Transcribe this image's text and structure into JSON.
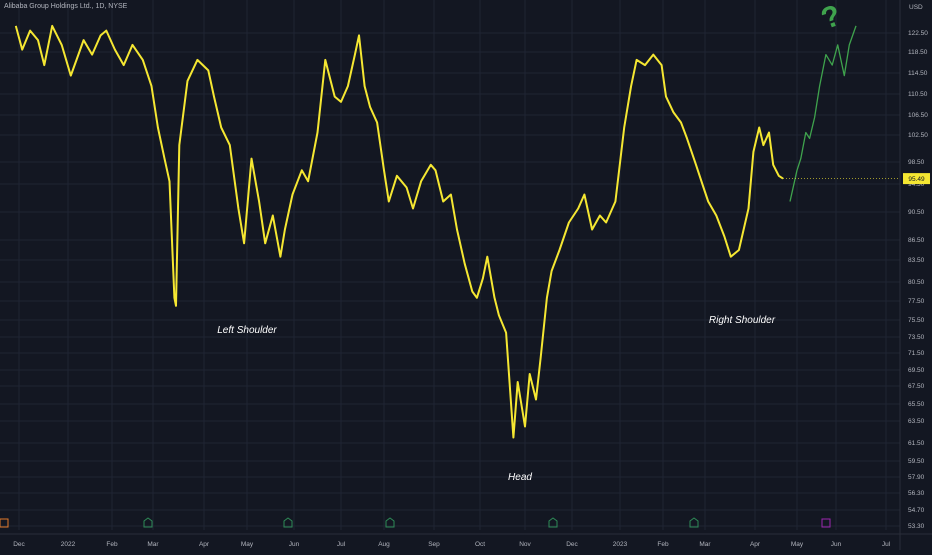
{
  "header": {
    "title": "Alibaba Group Holdings Ltd., 1D, NYSE"
  },
  "chart_data": {
    "type": "line",
    "currency": "USD",
    "last_price": "95.49",
    "y_ticks": [
      "122.50",
      "118.50",
      "114.50",
      "110.50",
      "106.50",
      "102.50",
      "98.50",
      "94.50",
      "90.50",
      "86.50",
      "83.50",
      "80.50",
      "77.50",
      "75.50",
      "73.50",
      "71.50",
      "69.50",
      "67.50",
      "65.50",
      "63.50",
      "61.50",
      "59.50",
      "57.90",
      "56.30",
      "54.70",
      "53.30"
    ],
    "x_ticks": [
      "Dec",
      "2022",
      "Feb",
      "Mar",
      "Apr",
      "May",
      "Jun",
      "Jul",
      "Aug",
      "Sep",
      "Oct",
      "Nov",
      "Dec",
      "2023",
      "Feb",
      "Mar",
      "Apr",
      "May",
      "Jun",
      "Jul"
    ],
    "annotations": {
      "left_shoulder": "Left Shoulder",
      "head": "Head",
      "right_shoulder": "Right Shoulder",
      "question": "?"
    },
    "series": [
      {
        "color": "#f5e732",
        "points": [
          [
            "2021-11-29",
            124
          ],
          [
            "2021-12-03",
            119
          ],
          [
            "2021-12-08",
            123
          ],
          [
            "2021-12-13",
            121
          ],
          [
            "2021-12-17",
            116
          ],
          [
            "2021-12-22",
            124
          ],
          [
            "2021-12-28",
            120
          ],
          [
            "2022-01-03",
            114
          ],
          [
            "2022-01-07",
            117
          ],
          [
            "2022-01-12",
            121
          ],
          [
            "2022-01-18",
            118
          ],
          [
            "2022-01-24",
            122
          ],
          [
            "2022-01-28",
            123
          ],
          [
            "2022-02-03",
            119
          ],
          [
            "2022-02-09",
            116
          ],
          [
            "2022-02-15",
            120
          ],
          [
            "2022-02-22",
            117
          ],
          [
            "2022-02-28",
            112
          ],
          [
            "2022-03-04",
            104
          ],
          [
            "2022-03-08",
            99
          ],
          [
            "2022-03-11",
            95
          ],
          [
            "2022-03-14",
            78
          ],
          [
            "2022-03-15",
            77
          ],
          [
            "2022-03-17",
            101
          ],
          [
            "2022-03-22",
            113
          ],
          [
            "2022-03-28",
            117
          ],
          [
            "2022-04-04",
            115
          ],
          [
            "2022-04-08",
            110
          ],
          [
            "2022-04-13",
            104
          ],
          [
            "2022-04-19",
            101
          ],
          [
            "2022-04-25",
            91
          ],
          [
            "2022-04-29",
            86
          ],
          [
            "2022-05-04",
            99
          ],
          [
            "2022-05-09",
            92
          ],
          [
            "2022-05-13",
            86
          ],
          [
            "2022-05-18",
            90
          ],
          [
            "2022-05-23",
            84
          ],
          [
            "2022-05-26",
            88
          ],
          [
            "2022-05-31",
            93
          ],
          [
            "2022-06-06",
            97
          ],
          [
            "2022-06-10",
            95
          ],
          [
            "2022-06-16",
            103
          ],
          [
            "2022-06-21",
            117
          ],
          [
            "2022-06-27",
            110
          ],
          [
            "2022-07-01",
            109
          ],
          [
            "2022-07-06",
            112
          ],
          [
            "2022-07-11",
            118
          ],
          [
            "2022-07-14",
            122
          ],
          [
            "2022-07-18",
            112
          ],
          [
            "2022-07-22",
            108
          ],
          [
            "2022-07-27",
            105
          ],
          [
            "2022-08-01",
            97
          ],
          [
            "2022-08-04",
            92
          ],
          [
            "2022-08-09",
            96
          ],
          [
            "2022-08-15",
            94
          ],
          [
            "2022-08-19",
            91
          ],
          [
            "2022-08-24",
            95
          ],
          [
            "2022-08-30",
            98
          ],
          [
            "2022-09-02",
            97
          ],
          [
            "2022-09-07",
            92
          ],
          [
            "2022-09-12",
            93
          ],
          [
            "2022-09-16",
            88
          ],
          [
            "2022-09-21",
            83
          ],
          [
            "2022-09-26",
            79
          ],
          [
            "2022-09-29",
            78
          ],
          [
            "2022-10-03",
            81
          ],
          [
            "2022-10-06",
            84
          ],
          [
            "2022-10-11",
            78
          ],
          [
            "2022-10-14",
            76
          ],
          [
            "2022-10-19",
            74
          ],
          [
            "2022-10-24",
            62
          ],
          [
            "2022-10-27",
            68
          ],
          [
            "2022-11-01",
            63
          ],
          [
            "2022-11-04",
            69
          ],
          [
            "2022-11-08",
            66
          ],
          [
            "2022-11-11",
            71
          ],
          [
            "2022-11-15",
            78
          ],
          [
            "2022-11-18",
            82
          ],
          [
            "2022-11-23",
            85
          ],
          [
            "2022-11-29",
            89
          ],
          [
            "2022-12-05",
            91
          ],
          [
            "2022-12-09",
            93
          ],
          [
            "2022-12-14",
            88
          ],
          [
            "2022-12-19",
            90
          ],
          [
            "2022-12-23",
            89
          ],
          [
            "2022-12-29",
            92
          ],
          [
            "2023-01-04",
            104
          ],
          [
            "2023-01-09",
            112
          ],
          [
            "2023-01-13",
            117
          ],
          [
            "2023-01-19",
            116
          ],
          [
            "2023-01-25",
            118
          ],
          [
            "2023-01-31",
            116
          ],
          [
            "2023-02-03",
            110
          ],
          [
            "2023-02-08",
            107
          ],
          [
            "2023-02-13",
            105
          ],
          [
            "2023-02-17",
            102
          ],
          [
            "2023-02-23",
            98
          ],
          [
            "2023-02-28",
            94
          ],
          [
            "2023-03-03",
            92
          ],
          [
            "2023-03-08",
            90
          ],
          [
            "2023-03-13",
            87
          ],
          [
            "2023-03-17",
            84
          ],
          [
            "2023-03-22",
            85
          ],
          [
            "2023-03-28",
            91
          ],
          [
            "2023-03-31",
            100
          ],
          [
            "2023-04-04",
            104
          ],
          [
            "2023-04-07",
            101
          ],
          [
            "2023-04-11",
            103
          ],
          [
            "2023-04-14",
            98
          ],
          [
            "2023-04-18",
            96
          ],
          [
            "2023-04-21",
            95.49
          ]
        ]
      },
      {
        "color": "#3fa34d",
        "points": [
          [
            "2023-04-26",
            92
          ],
          [
            "2023-05-01",
            97
          ],
          [
            "2023-05-04",
            99
          ],
          [
            "2023-05-08",
            103
          ],
          [
            "2023-05-11",
            102
          ],
          [
            "2023-05-15",
            106
          ],
          [
            "2023-05-19",
            112
          ],
          [
            "2023-05-24",
            118
          ],
          [
            "2023-05-29",
            116
          ],
          [
            "2023-06-02",
            120
          ],
          [
            "2023-06-06",
            114
          ],
          [
            "2023-06-09",
            120
          ],
          [
            "2023-06-13",
            124
          ]
        ]
      }
    ],
    "bottom_icons": [
      "earnings-icon",
      "dividend-icon",
      "dividend-icon",
      "dividend-icon",
      "dividend-icon",
      "dividend-icon",
      "event-icon"
    ]
  }
}
